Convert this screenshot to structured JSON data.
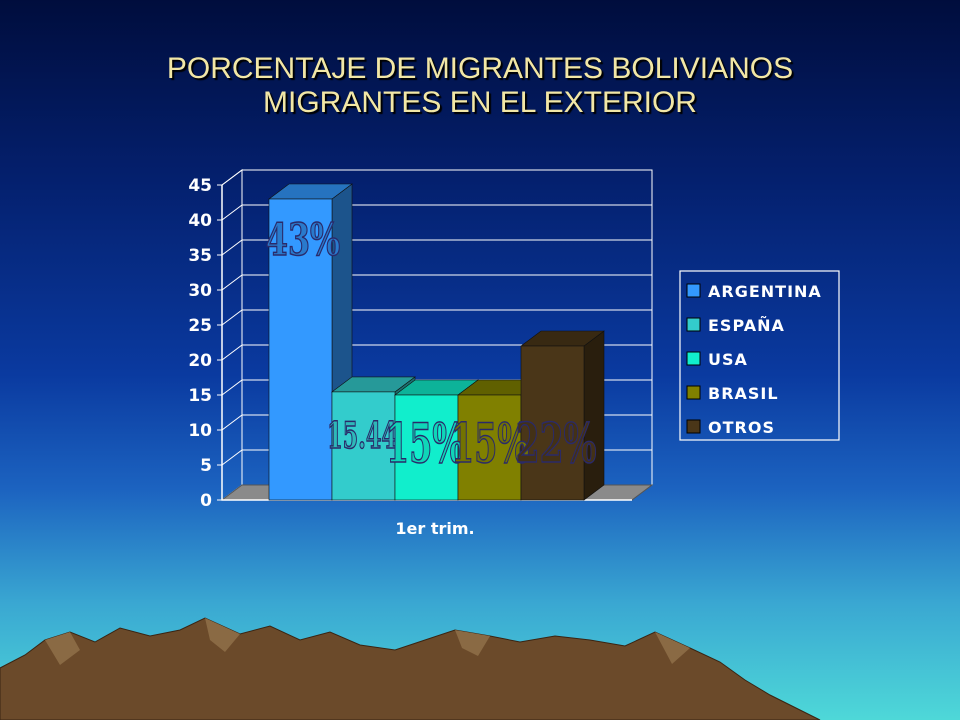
{
  "slide": {
    "title_line1": "PORCENTAJE DE MIGRANTES BOLIVIANOS",
    "title_line2": "MIGRANTES EN EL EXTERIOR"
  },
  "chart_data": {
    "type": "bar",
    "title": "PORCENTAJE DE MIGRANTES BOLIVIANOS MIGRANTES EN EL EXTERIOR",
    "categories": [
      "1er trim."
    ],
    "series": [
      {
        "name": "ARGENTINA",
        "values": [
          43
        ],
        "label": "43%",
        "color": "#3399ff"
      },
      {
        "name": "ESPAÑA",
        "values": [
          15.44
        ],
        "label": "15.44",
        "color": "#33cccc"
      },
      {
        "name": "USA",
        "values": [
          15
        ],
        "label": "15%",
        "color": "#11eecc"
      },
      {
        "name": "BRASIL",
        "values": [
          15
        ],
        "label": "15%",
        "color": "#808000"
      },
      {
        "name": "OTROS",
        "values": [
          22
        ],
        "label": "22%",
        "color": "#4a3618"
      }
    ],
    "yticks": [
      0,
      5,
      10,
      15,
      20,
      25,
      30,
      35,
      40,
      45
    ],
    "ylim": [
      0,
      45
    ],
    "xlabel": "",
    "ylabel": "",
    "grid": true,
    "legend": "right",
    "style": "3d-column"
  }
}
